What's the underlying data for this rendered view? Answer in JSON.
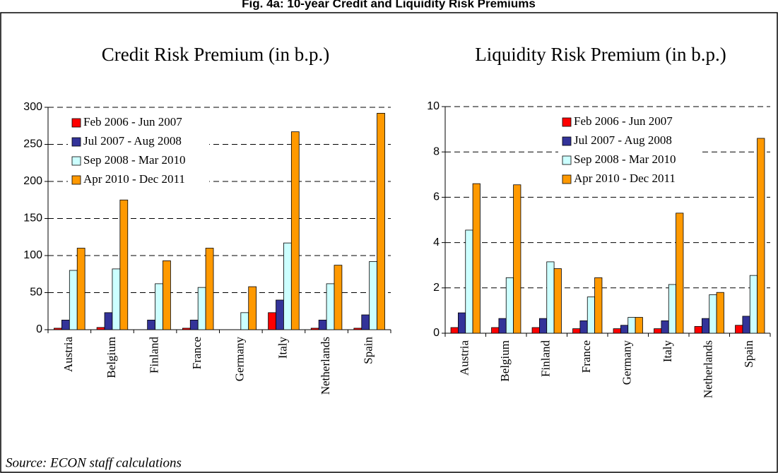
{
  "title": "Fig. 4a: 10-year Credit and Liquidity Risk Premiums",
  "source": "Source: ECON staff calculations",
  "chart_data": [
    {
      "type": "bar",
      "title": "Credit Risk Premium (in b.p.)",
      "categories": [
        "Austria",
        "Belgium",
        "Finland",
        "France",
        "Germany",
        "Italy",
        "Netherlands",
        "Spain"
      ],
      "series": [
        {
          "name": "Feb 2006 - Jun 2007",
          "color": "#ff0000",
          "values": [
            2,
            3,
            0,
            2,
            0,
            23,
            2,
            2
          ]
        },
        {
          "name": "Jul 2007 - Aug 2008",
          "color": "#333399",
          "values": [
            13,
            23,
            13,
            13,
            0,
            40,
            13,
            20
          ]
        },
        {
          "name": "Sep 2008 - Mar 2010",
          "color": "#ccffff",
          "values": [
            80,
            82,
            62,
            57,
            23,
            117,
            62,
            92
          ]
        },
        {
          "name": "Apr 2010 - Dec 2011",
          "color": "#ff9900",
          "values": [
            110,
            175,
            93,
            110,
            58,
            267,
            87,
            292
          ]
        }
      ],
      "ylim": [
        0,
        300
      ],
      "yticks": [
        0,
        50,
        100,
        150,
        200,
        250,
        300
      ],
      "grid": true,
      "legend": "upper left"
    },
    {
      "type": "bar",
      "title": "Liquidity Risk Premium (in b.p.)",
      "categories": [
        "Austria",
        "Belgium",
        "Finland",
        "France",
        "Germany",
        "Italy",
        "Netherlands",
        "Spain"
      ],
      "series": [
        {
          "name": "Feb 2006 - Jun 2007",
          "color": "#ff0000",
          "values": [
            0.25,
            0.25,
            0.25,
            0.2,
            0.2,
            0.2,
            0.3,
            0.35
          ]
        },
        {
          "name": "Jul 2007 - Aug 2008",
          "color": "#333399",
          "values": [
            0.9,
            0.65,
            0.65,
            0.55,
            0.35,
            0.55,
            0.65,
            0.75
          ]
        },
        {
          "name": "Sep 2008 - Mar 2010",
          "color": "#ccffff",
          "values": [
            4.55,
            2.45,
            3.15,
            1.6,
            0.7,
            2.15,
            1.7,
            2.55
          ]
        },
        {
          "name": "Apr 2010 - Dec 2011",
          "color": "#ff9900",
          "values": [
            6.6,
            6.55,
            2.85,
            2.45,
            0.7,
            5.3,
            1.8,
            8.6
          ]
        }
      ],
      "ylim": [
        0,
        10
      ],
      "yticks": [
        0,
        2,
        4,
        6,
        8,
        10
      ],
      "grid": true,
      "legend": "upper center"
    }
  ]
}
